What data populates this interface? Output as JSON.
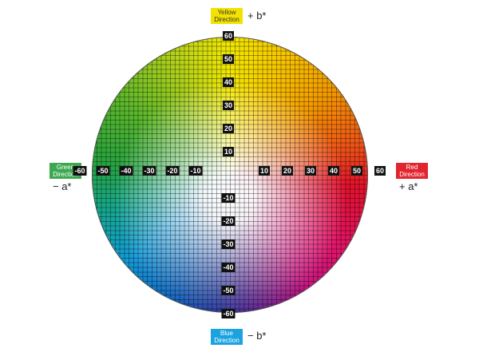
{
  "directions": {
    "yellow": "Yellow Direction",
    "green": "Green Direction",
    "red": "Red Direction",
    "blue": "Blue Direction"
  },
  "axis_labels": {
    "plus_b": "+ b*",
    "minus_a": "− a*",
    "plus_a": "+ a*",
    "minus_b": "− b*"
  },
  "a_ticks": [
    -60,
    -50,
    -40,
    -30,
    -20,
    -10,
    10,
    20,
    30,
    40,
    50,
    60
  ],
  "b_ticks": [
    60,
    50,
    40,
    30,
    20,
    10,
    -10,
    -20,
    -30,
    -40,
    -50,
    -60
  ]
}
